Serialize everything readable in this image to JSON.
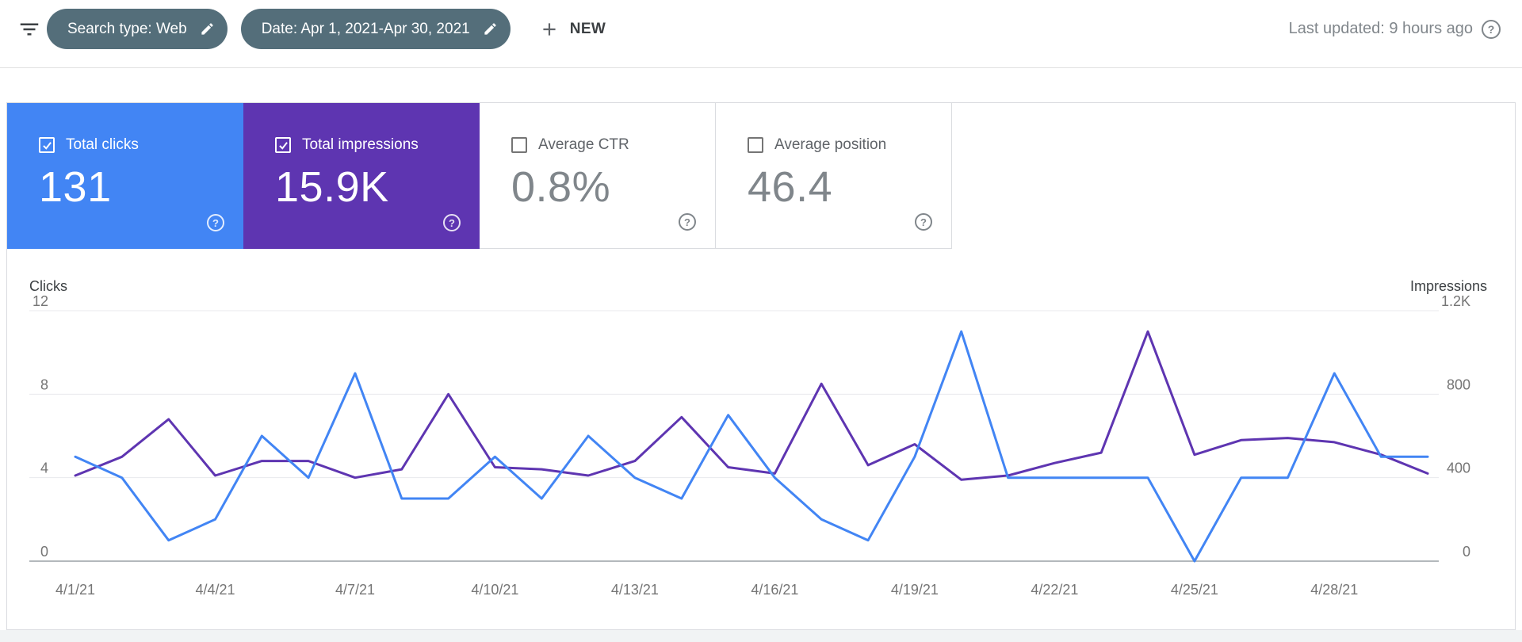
{
  "topbar": {
    "search_type_chip": "Search type: Web",
    "date_chip": "Date: Apr 1, 2021-Apr 30, 2021",
    "new_button_label": "NEW",
    "last_updated": "Last updated: 9 hours ago"
  },
  "metric_cards": [
    {
      "label": "Total clicks",
      "value": "131",
      "selected": true,
      "color": "#4285f4"
    },
    {
      "label": "Total impressions",
      "value": "15.9K",
      "selected": true,
      "color": "#5e35b1"
    },
    {
      "label": "Average CTR",
      "value": "0.8%",
      "selected": false
    },
    {
      "label": "Average position",
      "value": "46.4",
      "selected": false
    }
  ],
  "chart_data": {
    "type": "line",
    "x_tick_labels": [
      "4/1/21",
      "4/4/21",
      "4/7/21",
      "4/10/21",
      "4/13/21",
      "4/16/21",
      "4/19/21",
      "4/22/21",
      "4/25/21",
      "4/28/21"
    ],
    "x_tick_indices": [
      0,
      3,
      6,
      9,
      12,
      15,
      18,
      21,
      24,
      27
    ],
    "left_axis": {
      "title": "Clicks",
      "tick_values": [
        0,
        4,
        8,
        12
      ],
      "tick_labels": [
        "0",
        "4",
        "8",
        "12"
      ],
      "max": 12
    },
    "right_axis": {
      "title": "Impressions",
      "tick_values": [
        0,
        400,
        800,
        1200
      ],
      "tick_labels": [
        "0",
        "400",
        "800",
        "1.2K"
      ],
      "max": 1200
    },
    "series": [
      {
        "name": "Clicks",
        "axis": "left",
        "color": "#4285f4",
        "values": [
          5,
          4,
          1,
          2,
          6,
          4,
          9,
          3,
          3,
          5,
          3,
          6,
          4,
          3,
          7,
          4,
          2,
          1,
          5,
          11,
          4,
          4,
          4,
          4,
          0,
          4,
          4,
          9,
          5,
          5
        ]
      },
      {
        "name": "Impressions",
        "axis": "right",
        "color": "#5e35b1",
        "values": [
          410,
          500,
          680,
          410,
          480,
          480,
          400,
          440,
          800,
          450,
          440,
          410,
          480,
          690,
          450,
          420,
          850,
          460,
          560,
          390,
          410,
          470,
          520,
          1100,
          510,
          580,
          590,
          570,
          510,
          420
        ]
      }
    ],
    "grid": "horizontal",
    "legend_position": "none"
  }
}
